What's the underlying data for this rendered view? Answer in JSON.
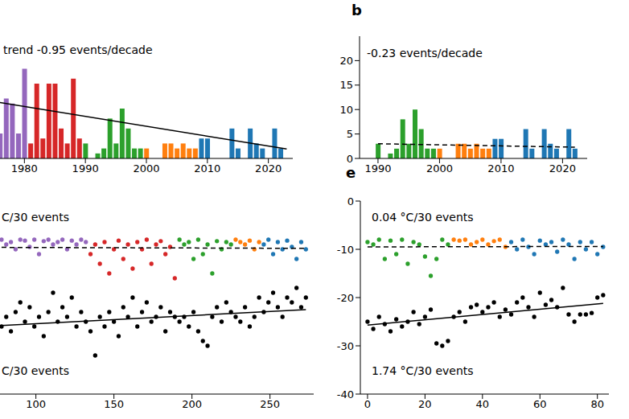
{
  "chart_data": [
    {
      "type": "bar",
      "annotations": [
        "trend -0.95 events/decade"
      ],
      "xlim": [
        1976,
        2024
      ],
      "xticks": [
        1980,
        1990,
        2000,
        2010,
        2020
      ],
      "ylim": [
        0,
        25
      ],
      "tick_labels": "x",
      "series": [
        {
          "color": "#9467bd",
          "x": [
            1976,
            1977,
            1978,
            1979,
            1980
          ],
          "values": [
            5,
            12,
            11,
            5,
            18
          ]
        },
        {
          "color": "#d62728",
          "x": [
            1981,
            1982,
            1983,
            1984,
            1985,
            1986,
            1987,
            1988,
            1989
          ],
          "values": [
            3,
            15,
            4,
            15,
            15,
            6,
            3,
            16,
            4
          ]
        },
        {
          "color": "#2ca02c",
          "x": [
            1990,
            1991,
            1992,
            1993,
            1994,
            1995,
            1996,
            1997,
            1998,
            1999
          ],
          "values": [
            3,
            0,
            1,
            2,
            8,
            3,
            10,
            6,
            2,
            2
          ]
        },
        {
          "color": "#ff7f0e",
          "x": [
            2000,
            2001,
            2002,
            2003,
            2004,
            2005,
            2006,
            2007,
            2008
          ],
          "values": [
            2,
            0,
            0,
            3,
            3,
            2,
            3,
            2,
            2
          ]
        },
        {
          "color": "#1f77b4",
          "x": [
            2009,
            2010,
            2011,
            2012,
            2013,
            2014,
            2015,
            2016,
            2017,
            2018,
            2019,
            2020,
            2021,
            2022
          ],
          "values": [
            4,
            4,
            0,
            0,
            0,
            6,
            2,
            0,
            6,
            3,
            2,
            0,
            6,
            2
          ]
        },
        {
          "type": "line",
          "color": "#000000",
          "line_style": "solid",
          "x": [
            1976,
            2023
          ],
          "values": [
            11.2,
            1.9
          ]
        }
      ]
    },
    {
      "type": "bar",
      "title": "b",
      "annotations": [
        "-0.23 events/decade"
      ],
      "xlim": [
        1987,
        2024
      ],
      "xticks": [
        1990,
        2000,
        2010,
        2020
      ],
      "ylim": [
        0,
        25
      ],
      "yticks": [
        0,
        5,
        10,
        15,
        20
      ],
      "series": [
        {
          "color": "#2ca02c",
          "x": [
            1990,
            1991,
            1992,
            1993,
            1994,
            1995,
            1996,
            1997,
            1998,
            1999
          ],
          "values": [
            3,
            0,
            1,
            2,
            8,
            3,
            10,
            6,
            2,
            2
          ]
        },
        {
          "color": "#ff7f0e",
          "x": [
            2000,
            2001,
            2002,
            2003,
            2004,
            2005,
            2006,
            2007,
            2008
          ],
          "values": [
            2,
            0,
            0,
            3,
            3,
            2,
            3,
            2,
            2
          ]
        },
        {
          "color": "#1f77b4",
          "x": [
            2009,
            2010,
            2011,
            2012,
            2013,
            2014,
            2015,
            2016,
            2017,
            2018,
            2019,
            2020,
            2021,
            2022
          ],
          "values": [
            4,
            4,
            0,
            0,
            0,
            6,
            2,
            0,
            6,
            3,
            2,
            0,
            6,
            2
          ]
        },
        {
          "type": "line",
          "color": "#000000",
          "line_style": "dashed",
          "x": [
            1990,
            2022
          ],
          "values": [
            3,
            2.3
          ]
        }
      ]
    },
    {
      "type": "scatter",
      "annotations": [
        "C/30 events",
        "C/30 events"
      ],
      "xlim": [
        77,
        278
      ],
      "xticks": [
        100,
        150,
        200,
        250
      ],
      "ylim": [
        -40,
        0
      ],
      "tick_labels": "x",
      "series": [
        {
          "color": "#9467bd",
          "x": [
            78,
            81,
            84,
            87,
            90,
            93,
            96,
            99,
            102,
            105,
            108,
            111,
            114,
            117,
            120,
            123,
            126,
            129,
            132
          ],
          "values": [
            -8,
            -9,
            -8.5,
            -10,
            -8,
            -8.2,
            -9.5,
            -8,
            -11,
            -8.3,
            -8,
            -9,
            -8.5,
            -8,
            -10,
            -8.2,
            -9,
            -8,
            -8.5
          ]
        },
        {
          "color": "#d62728",
          "x": [
            135,
            138,
            141,
            144,
            147,
            150,
            153,
            156,
            159,
            162,
            165,
            168,
            171,
            174,
            177,
            180,
            183,
            186,
            189
          ],
          "values": [
            -11,
            -9,
            -13,
            -8.5,
            -15,
            -10,
            -8.2,
            -12,
            -9,
            -14,
            -8.5,
            -10,
            -8,
            -13,
            -9,
            -8.3,
            -11,
            -9.5,
            -16
          ]
        },
        {
          "color": "#2ca02c",
          "x": [
            192,
            195,
            198,
            201,
            204,
            207,
            210,
            213,
            216,
            219,
            222,
            225
          ],
          "values": [
            -8,
            -9,
            -8.5,
            -12,
            -8,
            -11,
            -9,
            -15,
            -8.3,
            -10,
            -8.5,
            -9
          ]
        },
        {
          "color": "#ff7f0e",
          "x": [
            228,
            231,
            234,
            237,
            240,
            243
          ],
          "values": [
            -8,
            -8.5,
            -9,
            -8.2,
            -10,
            -8.5
          ]
        },
        {
          "color": "#1f77b4",
          "x": [
            246,
            249,
            252,
            255,
            258,
            261,
            264,
            267,
            270,
            273
          ],
          "values": [
            -9,
            -8,
            -11,
            -8.5,
            -10,
            -8.2,
            -9.5,
            -12,
            -8.5,
            -10
          ]
        },
        {
          "color": "#000000",
          "x": [
            78,
            81,
            84,
            87,
            90,
            93,
            96,
            99,
            102,
            105,
            108,
            111,
            114,
            117,
            120,
            123,
            126,
            129,
            132,
            135,
            138,
            141,
            144,
            147,
            150,
            153,
            156,
            159,
            162,
            165,
            168,
            171,
            174,
            177,
            180,
            183,
            186,
            189,
            192,
            195,
            198,
            201,
            204,
            207,
            210,
            213,
            216,
            219,
            222,
            225,
            228,
            231,
            234,
            237,
            240,
            243,
            246,
            249,
            252,
            255,
            258,
            261,
            264,
            267,
            270,
            273
          ],
          "values": [
            -26,
            -24,
            -27,
            -23,
            -21,
            -25,
            -22,
            -26,
            -24,
            -28,
            -23,
            -19,
            -25,
            -22,
            -24,
            -20,
            -26,
            -23,
            -25,
            -27,
            -32,
            -24,
            -26,
            -23,
            -25,
            -28,
            -22,
            -24,
            -20,
            -26,
            -23,
            -21,
            -25,
            -24,
            -22,
            -27,
            -23,
            -24,
            -25,
            -24,
            -26,
            -23,
            -27,
            -29,
            -30,
            -24,
            -22,
            -25,
            -21,
            -23,
            -24,
            -25,
            -22,
            -26,
            -24,
            -20,
            -23,
            -21,
            -19,
            -22,
            -24,
            -20,
            -21,
            -18,
            -22,
            -20
          ]
        },
        {
          "type": "line",
          "color": "#000000",
          "line_style": "dashed",
          "x": [
            78,
            273
          ],
          "values": [
            -9.6,
            -9.8
          ]
        },
        {
          "type": "line",
          "color": "#000000",
          "line_style": "solid",
          "x": [
            78,
            273
          ],
          "values": [
            -25.8,
            -22.5
          ]
        }
      ]
    },
    {
      "type": "scatter",
      "title": "e",
      "annotations": [
        "0.04 °C/30 events",
        "1.74 °C/30 events"
      ],
      "xlim": [
        -2.5,
        84
      ],
      "xticks": [
        0,
        20,
        40,
        60,
        80
      ],
      "ylim": [
        -40,
        0
      ],
      "yticks": [
        0,
        -10,
        -20,
        -30,
        -40
      ],
      "series": [
        {
          "color": "#2ca02c",
          "x": [
            0,
            2,
            4,
            6,
            8,
            10,
            12,
            14,
            16,
            18,
            20,
            22,
            24,
            26,
            28
          ],
          "values": [
            -8.5,
            -9,
            -8,
            -12,
            -8.2,
            -11,
            -8,
            -13,
            -8.5,
            -9,
            -11.5,
            -15.5,
            -12,
            -8,
            -9
          ]
        },
        {
          "color": "#ff7f0e",
          "x": [
            30,
            32,
            34,
            36,
            38,
            40,
            42,
            44,
            46,
            48
          ],
          "values": [
            -8,
            -8.2,
            -8,
            -9,
            -8.5,
            -8,
            -9,
            -8.3,
            -8,
            -9.5
          ]
        },
        {
          "color": "#1f77b4",
          "x": [
            50,
            52,
            54,
            56,
            58,
            60,
            62,
            64,
            66,
            68,
            70,
            72,
            74,
            76,
            78,
            80,
            82
          ],
          "values": [
            -8.5,
            -10,
            -8,
            -9.5,
            -11,
            -8.2,
            -9,
            -8.5,
            -10.5,
            -8,
            -9,
            -12,
            -8.5,
            -10,
            -8.5,
            -11,
            -9.5
          ]
        },
        {
          "color": "#000000",
          "x": [
            0,
            2,
            4,
            6,
            8,
            10,
            12,
            14,
            16,
            18,
            20,
            22,
            24,
            26,
            28,
            30,
            32,
            34,
            36,
            38,
            40,
            42,
            44,
            46,
            48,
            50,
            52,
            54,
            56,
            58,
            60,
            62,
            64,
            66,
            68,
            70,
            72,
            74,
            76,
            78,
            80,
            82
          ],
          "values": [
            -25,
            -26.5,
            -24,
            -25.5,
            -27,
            -24.5,
            -26,
            -25,
            -23,
            -25.5,
            -24,
            -22.5,
            -29.5,
            -30,
            -29,
            -24,
            -23,
            -25,
            -22,
            -21.5,
            -23,
            -22,
            -21,
            -24,
            -22.5,
            -23.5,
            -21,
            -20,
            -22,
            -24,
            -19,
            -21.5,
            -20.5,
            -22,
            -18,
            -23.5,
            -25,
            -23.5,
            -23.5,
            -23.2,
            -20,
            -19.5
          ]
        },
        {
          "type": "line",
          "color": "#000000",
          "line_style": "dashed",
          "x": [
            0,
            82
          ],
          "values": [
            -9.5,
            -9.4
          ]
        },
        {
          "type": "line",
          "color": "#000000",
          "line_style": "solid",
          "x": [
            0,
            82
          ],
          "values": [
            -25.7,
            -21.2
          ]
        }
      ]
    }
  ]
}
